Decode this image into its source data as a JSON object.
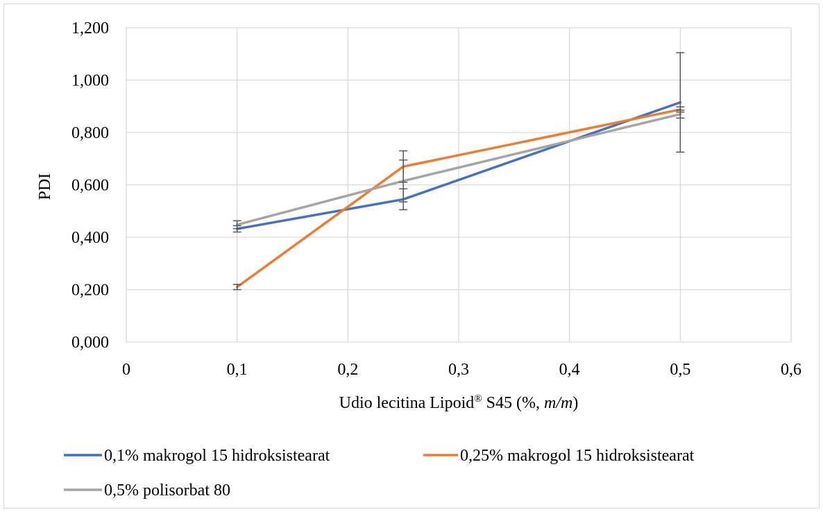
{
  "chart_data": {
    "type": "line",
    "title": "",
    "xlabel": "Udio lecitina Lipoid",
    "xlabel_sup": "®",
    "xlabel_suffix": " S45 (%, ",
    "xlabel_unit": "m/m",
    "xlabel_end": ")",
    "ylabel": "PDI",
    "xlim": [
      0,
      0.6
    ],
    "ylim": [
      0,
      1.2
    ],
    "x_ticks": [
      0,
      0.1,
      0.2,
      0.3,
      0.4,
      0.5,
      0.6
    ],
    "x_tick_labels": [
      "0",
      "0,1",
      "0,2",
      "0,3",
      "0,4",
      "0,5",
      "0,6"
    ],
    "y_ticks": [
      0,
      0.2,
      0.4,
      0.6,
      0.8,
      1.0,
      1.2
    ],
    "y_tick_labels": [
      "0,000",
      "0,200",
      "0,400",
      "0,600",
      "0,800",
      "1,000",
      "1,200"
    ],
    "grid": true,
    "legend_position": "bottom",
    "series": [
      {
        "name": "0,1% makrogol 15 hidroksistearat",
        "color": "#4472c4",
        "x": [
          0.1,
          0.25,
          0.5
        ],
        "y": [
          0.432,
          0.545,
          0.915
        ],
        "error": [
          0.012,
          0.04,
          0.19
        ]
      },
      {
        "name": "0,25% makrogol 15 hidroksistearat",
        "color": "#ed7d31",
        "x": [
          0.1,
          0.25,
          0.5
        ],
        "y": [
          0.21,
          0.67,
          0.888
        ],
        "error": [
          0.01,
          0.06,
          0.01
        ]
      },
      {
        "name": "0,5% polisorbat 80",
        "color": "#a5a5a5",
        "x": [
          0.1,
          0.25,
          0.5
        ],
        "y": [
          0.448,
          0.615,
          0.87
        ],
        "error": [
          0.015,
          0.08,
          0.015
        ]
      }
    ]
  }
}
